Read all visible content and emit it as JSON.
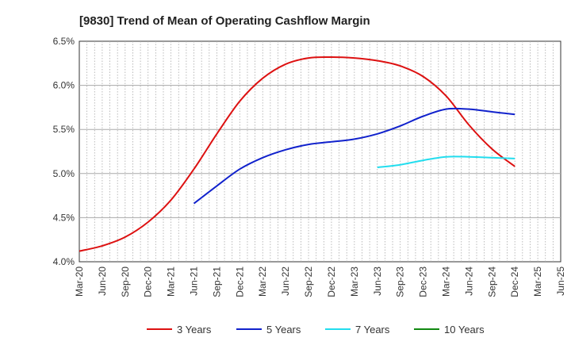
{
  "chart_data": {
    "type": "line",
    "title": "[9830]  Trend of Mean of Operating Cashflow Margin",
    "xlabel": "",
    "ylabel": "",
    "x": [
      "Mar-20",
      "Jun-20",
      "Sep-20",
      "Dec-20",
      "Mar-21",
      "Jun-21",
      "Sep-21",
      "Dec-21",
      "Mar-22",
      "Jun-22",
      "Sep-22",
      "Dec-22",
      "Mar-23",
      "Jun-23",
      "Sep-23",
      "Dec-23",
      "Mar-24",
      "Jun-24",
      "Sep-24",
      "Dec-24",
      "Mar-25",
      "Jun-25"
    ],
    "ylim": [
      4.0,
      6.5
    ],
    "yticks": [
      4.0,
      4.5,
      5.0,
      5.5,
      6.0,
      6.5
    ],
    "ytick_labels": [
      "4.0%",
      "4.5%",
      "5.0%",
      "5.5%",
      "6.0%",
      "6.5%"
    ],
    "grid": true,
    "legend_position": "bottom",
    "series": [
      {
        "name": "3 Years",
        "color": "#dd1111",
        "values": [
          4.12,
          4.18,
          4.28,
          4.45,
          4.7,
          5.05,
          5.45,
          5.82,
          6.08,
          6.24,
          6.31,
          6.32,
          6.31,
          6.28,
          6.22,
          6.1,
          5.88,
          5.55,
          5.28,
          5.08,
          null,
          null
        ]
      },
      {
        "name": "5 Years",
        "color": "#1122cc",
        "values": [
          null,
          null,
          null,
          null,
          null,
          4.66,
          4.86,
          5.05,
          5.18,
          5.27,
          5.33,
          5.36,
          5.39,
          5.45,
          5.54,
          5.65,
          5.73,
          5.73,
          5.7,
          5.67,
          null,
          null
        ]
      },
      {
        "name": "7 Years",
        "color": "#22ddee",
        "values": [
          null,
          null,
          null,
          null,
          null,
          null,
          null,
          null,
          null,
          null,
          null,
          null,
          null,
          5.07,
          5.1,
          5.15,
          5.19,
          5.19,
          5.18,
          5.17,
          null,
          null
        ]
      },
      {
        "name": "10 Years",
        "color": "#118811",
        "values": [
          null,
          null,
          null,
          null,
          null,
          null,
          null,
          null,
          null,
          null,
          null,
          null,
          null,
          null,
          null,
          null,
          null,
          null,
          null,
          null,
          null,
          null
        ]
      }
    ]
  }
}
